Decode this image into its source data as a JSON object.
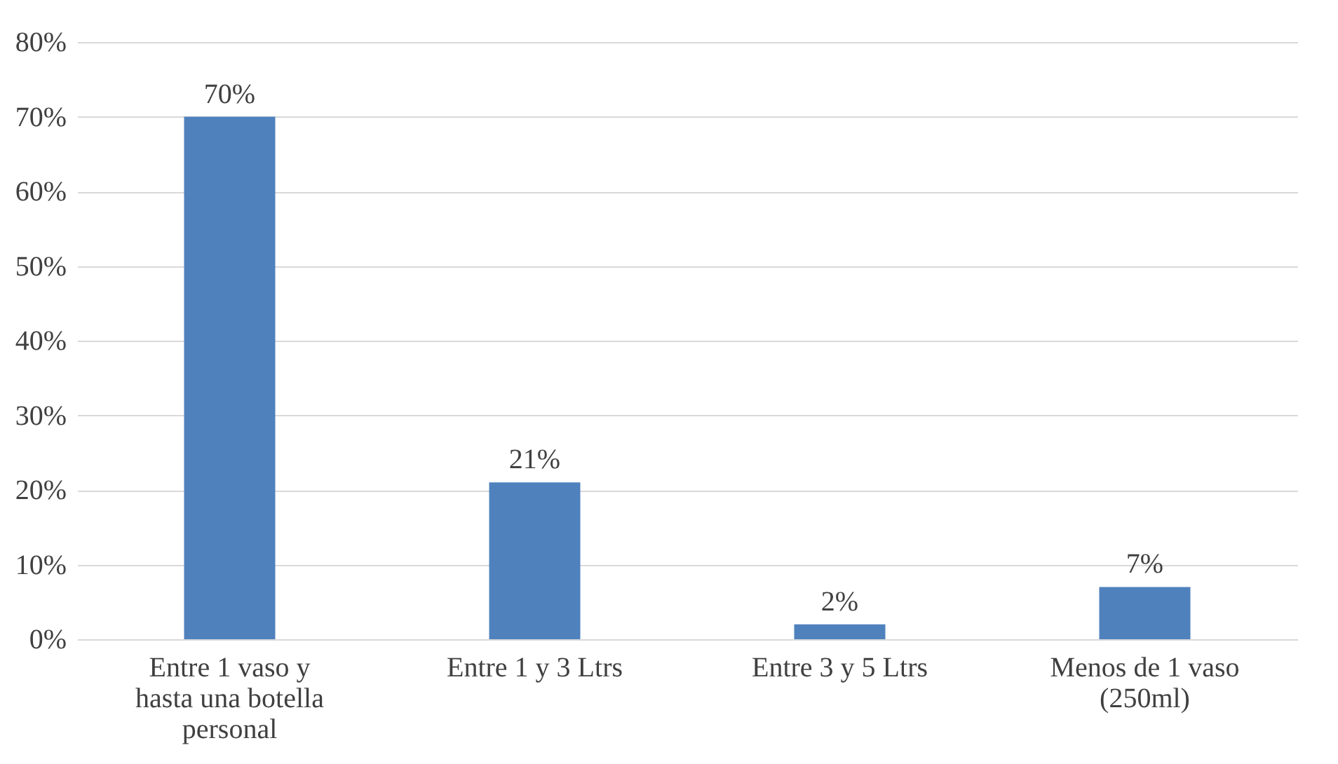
{
  "chart_data": {
    "type": "bar",
    "categories": [
      "Entre 1 vaso y hasta una botella personal",
      "Entre 1 y 3 Ltrs",
      "Entre 3 y 5 Ltrs",
      "Menos de 1 vaso (250ml)"
    ],
    "values": [
      70,
      21,
      2,
      7
    ],
    "value_labels": [
      "70%",
      "21%",
      "2%",
      "7%"
    ],
    "color": "#4f81bd",
    "ylim": [
      0,
      80
    ],
    "yticks": [
      {
        "value": 0,
        "label": "0%"
      },
      {
        "value": 10,
        "label": "10%"
      },
      {
        "value": 20,
        "label": "20%"
      },
      {
        "value": 30,
        "label": "30%"
      },
      {
        "value": 40,
        "label": "40%"
      },
      {
        "value": 50,
        "label": "50%"
      },
      {
        "value": 60,
        "label": "60%"
      },
      {
        "value": 70,
        "label": "70%"
      },
      {
        "value": 80,
        "label": "80%"
      }
    ],
    "grid": "y"
  }
}
